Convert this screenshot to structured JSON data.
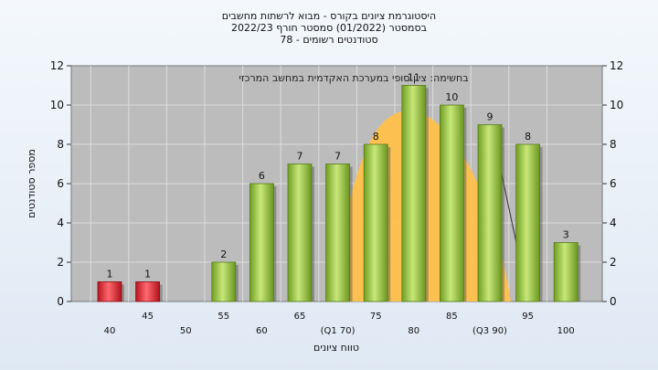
{
  "chart_data": {
    "type": "bar",
    "title_lines": [
      "היסטוגרמת ציונים בקורס - מבוא לרשתות מחשבים",
      "בסמסטר  (01/2022)  סמסטר חורף 2022/23",
      "סטודנטים רשומים - 78"
    ],
    "xlabel": "טווח ציונים",
    "ylabel": "מספר סטודנטים",
    "annotation": "בחשימה: ציון סופי במערכת האקדמית במחשב המרכזי",
    "ylim": [
      0,
      12
    ],
    "yticks": [
      0,
      2,
      4,
      6,
      8,
      10,
      12
    ],
    "grid": true,
    "categories": [
      "40",
      "45",
      "50",
      "55",
      "60",
      "65",
      "(Q1 70)",
      "75",
      "80",
      "85",
      "(Q3 90)",
      "95",
      "100"
    ],
    "values": [
      1,
      1,
      0,
      2,
      6,
      7,
      7,
      8,
      11,
      10,
      9,
      8,
      3
    ],
    "data_labels": [
      "1",
      "1",
      "",
      "2",
      "6",
      "7",
      "7",
      "8",
      "11",
      "10",
      "9",
      "8",
      "3"
    ],
    "colors": {
      "fail": "#e0323c",
      "pass": "#8fc43a",
      "plot_bg": "#bcbcbc",
      "curve": "#ffc04a"
    },
    "fail_categories": [
      "40",
      "45"
    ],
    "curve_range": [
      "(Q1 70)",
      "(Q3 90)"
    ]
  }
}
